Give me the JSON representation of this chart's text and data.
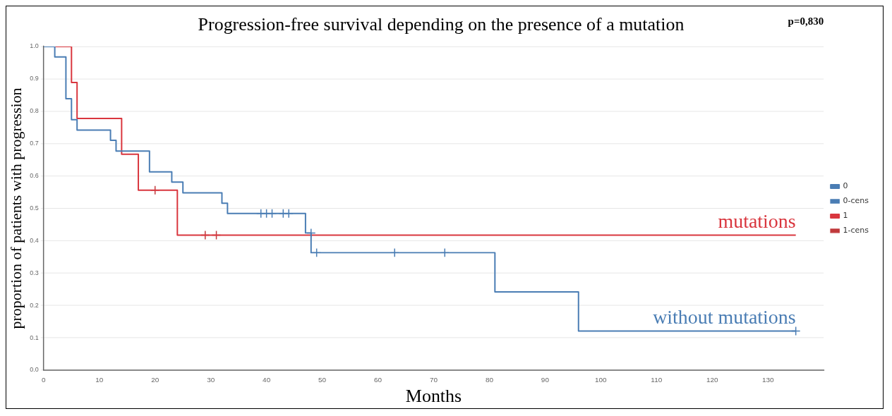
{
  "chart_data": {
    "type": "step",
    "title": "Progression-free survival depending on the presence of a mutation",
    "xlabel": "Months",
    "ylabel": "proportion of patients with progression",
    "series": [
      {
        "name": "0",
        "type": "step",
        "color": "#4a7db4",
        "x": [
          0,
          2,
          4,
          5,
          6,
          12,
          13,
          19,
          23,
          25,
          32,
          33,
          47,
          48,
          81,
          96,
          135
        ],
        "values": [
          1.0,
          0.968,
          0.839,
          0.774,
          0.742,
          0.71,
          0.677,
          0.613,
          0.581,
          0.548,
          0.516,
          0.484,
          0.424,
          0.363,
          0.242,
          0.121,
          0.121
        ]
      },
      {
        "name": "0-cens",
        "type": "scatter",
        "color": "#4a7db4",
        "marker": "cross",
        "x": [
          39,
          40,
          41,
          43,
          44,
          48,
          49,
          63,
          72,
          135
        ],
        "values": [
          0.484,
          0.484,
          0.484,
          0.484,
          0.484,
          0.424,
          0.363,
          0.363,
          0.363,
          0.121
        ]
      },
      {
        "name": "1",
        "type": "step",
        "color": "#d9363e",
        "x": [
          0,
          5,
          6,
          14,
          17,
          24,
          135
        ],
        "values": [
          1.0,
          0.889,
          0.778,
          0.667,
          0.556,
          0.417,
          0.417
        ]
      },
      {
        "name": "1-cens",
        "type": "scatter",
        "color": "#c0393b",
        "marker": "cross",
        "x": [
          20,
          29,
          31
        ],
        "values": [
          0.556,
          0.417,
          0.417
        ]
      }
    ],
    "xlim": [
      0,
      140
    ],
    "xticks": [
      0,
      10,
      20,
      30,
      40,
      50,
      60,
      70,
      80,
      90,
      100,
      110,
      120,
      130
    ],
    "ylim": [
      0,
      1
    ],
    "yticks": [
      {
        "value": 0,
        "label": "0.0"
      },
      0.1,
      0.2,
      0.3,
      0.4,
      0.5,
      0.6,
      0.7,
      0.8,
      0.9,
      {
        "value": 1,
        "label": "1.0"
      }
    ],
    "grid": "y",
    "legend": "right",
    "line_style": "solid",
    "annotations": [
      "p=0,830",
      {
        "text": "mutations",
        "x": 135,
        "y": 0.417
      },
      {
        "text": "without mutations",
        "x": 135,
        "y": 0.121
      }
    ]
  }
}
